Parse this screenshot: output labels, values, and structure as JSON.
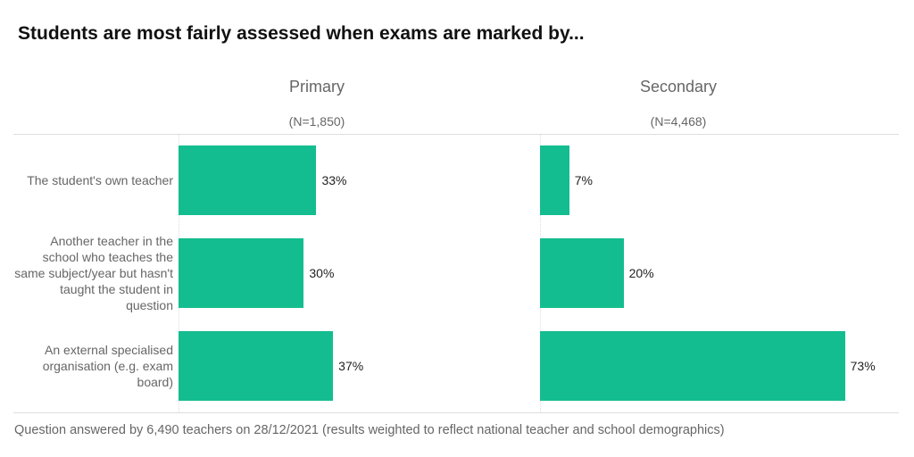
{
  "chart_data": {
    "type": "bar",
    "title": "Students are most fairly assessed when exams are marked by...",
    "categories": [
      "The student's own teacher",
      "Another teacher in the school who teaches the same subject/year but hasn't taught the student in question",
      "An external specialised organisation (e.g. exam board)"
    ],
    "panels": [
      {
        "name": "Primary",
        "n": "(N=1,850)",
        "values": [
          33,
          30,
          37
        ],
        "labels": [
          "33%",
          "30%",
          "37%"
        ]
      },
      {
        "name": "Secondary",
        "n": "(N=4,468)",
        "values": [
          7,
          20,
          73
        ],
        "labels": [
          "7%",
          "20%",
          "73%"
        ]
      }
    ],
    "bar_color": "#13bd8f",
    "footer": "Question answered by 6,490 teachers on 28/12/2021 (results weighted to reflect national teacher and school demographics)"
  }
}
